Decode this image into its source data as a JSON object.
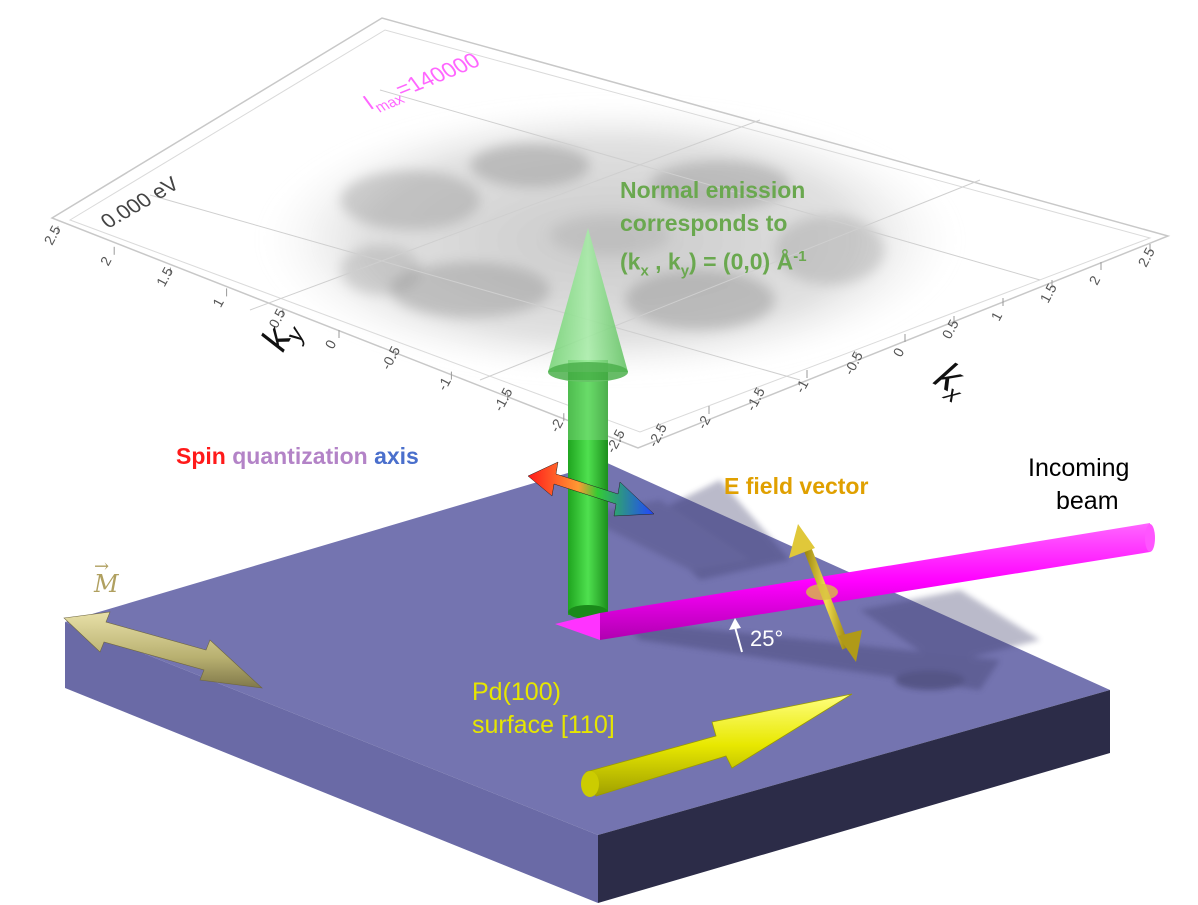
{
  "plot": {
    "energy_label": "0.000 eV",
    "imax_label": "I",
    "imax_sub": "max",
    "imax_value": "=140000",
    "ky_label": "k",
    "ky_sub": "y",
    "kx_label": "k",
    "kx_sub": "x",
    "ky_ticks": [
      "2.5",
      "2",
      "1.5",
      "1",
      "0.5",
      "0",
      "-0.5",
      "-1",
      "-1.5",
      "-2",
      "-2.5"
    ],
    "kx_ticks": [
      "-2.5",
      "-2",
      "-1.5",
      "-1",
      "-0.5",
      "0",
      "0.5",
      "1",
      "1.5",
      "2",
      "2.5"
    ]
  },
  "labels": {
    "normal_line1": "Normal emission",
    "normal_line2": "corresponds to",
    "normal_line3_a": "(k",
    "normal_line3_sub1": "x",
    "normal_line3_b": " , k",
    "normal_line3_sub2": "y",
    "normal_line3_c": ") = (0,0) Å",
    "normal_line3_sup": "-1",
    "spin_word": "Spin",
    "quant_word": "quantization",
    "axis_word": "axis",
    "efield": "E field vector",
    "beam_line1": "Incoming",
    "beam_line2": "beam",
    "pd_line1": "Pd(100)",
    "pd_line2": "surface [110]",
    "angle": "25°",
    "magnetization": "M"
  },
  "colors": {
    "surface_top": "#7474b0",
    "surface_front": "#2c2c48",
    "surface_left": "#66669e",
    "normal_arrow": "#3ec63e",
    "beam": "#ff00ff",
    "efield_arrow": "#e0c020",
    "m_arrow": "#b8b070",
    "direction_arrow": "#e8e800",
    "spin_red": "#ff1a1a",
    "spin_blue": "#2244ff"
  }
}
